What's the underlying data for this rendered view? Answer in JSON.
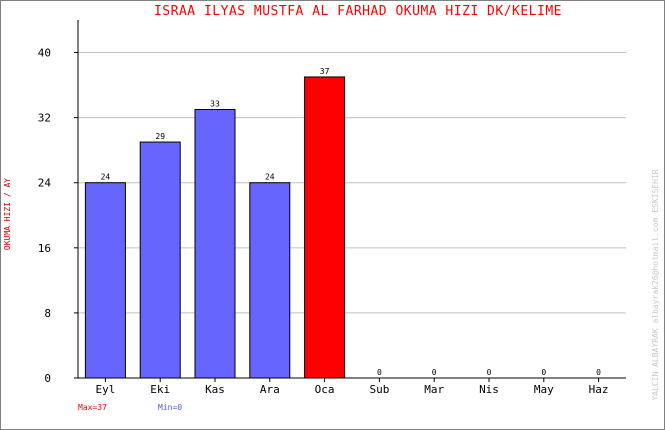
{
  "chart_data": {
    "type": "bar",
    "title": "ISRAA ILYAS MUSTFA AL FARHAD   OKUMA HIZI  DK/KELIME",
    "ylabel": "OKUMA HIZI / AY",
    "xlabel": "",
    "categories": [
      "Eyl",
      "Eki",
      "Kas",
      "Ara",
      "Oca",
      "Sub",
      "Mar",
      "Nis",
      "May",
      "Haz"
    ],
    "values": [
      24,
      29,
      33,
      24,
      37,
      0,
      0,
      0,
      0,
      0
    ],
    "ylim": [
      0,
      44
    ],
    "yticks": [
      0,
      8,
      16,
      24,
      32,
      40
    ],
    "grid": true,
    "colors": {
      "bar": "#6666ff",
      "bar_max": "#ff0000",
      "grid": "#c0c0c0",
      "axis": "#000000"
    },
    "stats": {
      "max_label": "Max=37",
      "min_label": "Min=0"
    },
    "credit": "YALCIN ALBAYRAK   albayrak26@hotmail.com   ESKISEHIR"
  }
}
